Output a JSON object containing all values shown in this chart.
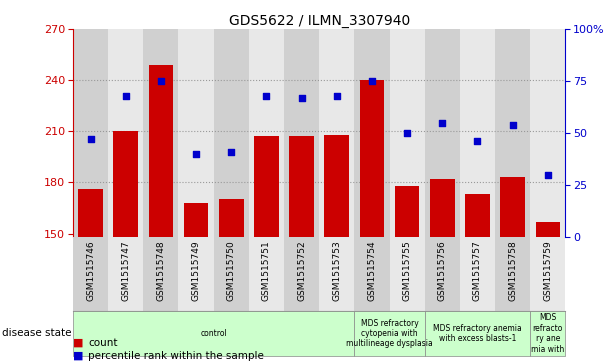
{
  "title": "GDS5622 / ILMN_3307940",
  "samples": [
    "GSM1515746",
    "GSM1515747",
    "GSM1515748",
    "GSM1515749",
    "GSM1515750",
    "GSM1515751",
    "GSM1515752",
    "GSM1515753",
    "GSM1515754",
    "GSM1515755",
    "GSM1515756",
    "GSM1515757",
    "GSM1515758",
    "GSM1515759"
  ],
  "counts": [
    176,
    210,
    249,
    168,
    170,
    207,
    207,
    208,
    240,
    178,
    182,
    173,
    183,
    157
  ],
  "percentiles": [
    47,
    68,
    75,
    40,
    41,
    68,
    67,
    68,
    75,
    50,
    55,
    46,
    54,
    30
  ],
  "ylim_left": [
    148,
    270
  ],
  "ylim_right": [
    0,
    100
  ],
  "yticks_left": [
    150,
    180,
    210,
    240,
    270
  ],
  "yticks_right": [
    0,
    25,
    50,
    75,
    100
  ],
  "bar_color": "#cc0000",
  "dot_color": "#0000cc",
  "col_bg_even": "#d0d0d0",
  "col_bg_odd": "#e8e8e8",
  "disease_groups": [
    {
      "label": "control",
      "start": 0,
      "end": 8
    },
    {
      "label": "MDS refractory\ncytopenia with\nmultilineage dysplasia",
      "start": 8,
      "end": 10
    },
    {
      "label": "MDS refractory anemia\nwith excess blasts-1",
      "start": 10,
      "end": 13
    },
    {
      "label": "MDS\nrefracto\nry ane\nmia with",
      "start": 13,
      "end": 14
    }
  ]
}
